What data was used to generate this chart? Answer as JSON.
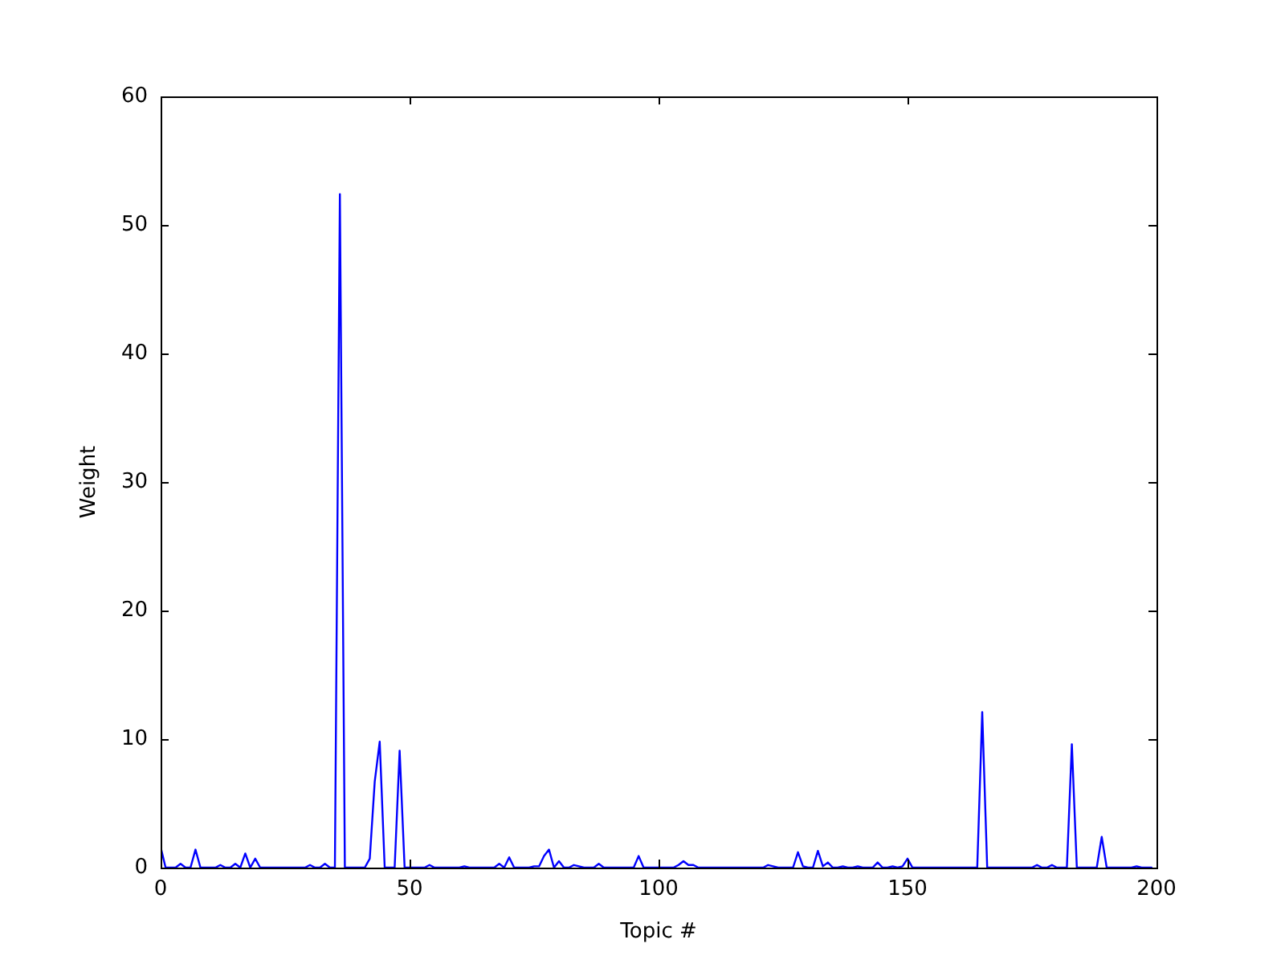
{
  "chart_data": {
    "type": "line",
    "xlabel": "Topic #",
    "ylabel": "Weight",
    "color": "#0000ff",
    "x": [
      0,
      1,
      2,
      3,
      4,
      5,
      6,
      7,
      8,
      9,
      10,
      11,
      12,
      13,
      14,
      15,
      16,
      17,
      18,
      19,
      20,
      21,
      22,
      23,
      24,
      25,
      26,
      27,
      28,
      29,
      30,
      31,
      32,
      33,
      34,
      35,
      36,
      37,
      38,
      39,
      40,
      41,
      42,
      43,
      44,
      45,
      46,
      47,
      48,
      49,
      50,
      51,
      52,
      53,
      54,
      55,
      56,
      57,
      58,
      59,
      60,
      61,
      62,
      63,
      64,
      65,
      66,
      67,
      68,
      69,
      70,
      71,
      72,
      73,
      74,
      75,
      76,
      77,
      78,
      79,
      80,
      81,
      82,
      83,
      84,
      85,
      86,
      87,
      88,
      89,
      90,
      91,
      92,
      93,
      94,
      95,
      96,
      97,
      98,
      99,
      100,
      101,
      102,
      103,
      104,
      105,
      106,
      107,
      108,
      109,
      110,
      111,
      112,
      113,
      114,
      115,
      116,
      117,
      118,
      119,
      120,
      121,
      122,
      123,
      124,
      125,
      126,
      127,
      128,
      129,
      130,
      131,
      132,
      133,
      134,
      135,
      136,
      137,
      138,
      139,
      140,
      141,
      142,
      143,
      144,
      145,
      146,
      147,
      148,
      149,
      150,
      151,
      152,
      153,
      154,
      155,
      156,
      157,
      158,
      159,
      160,
      161,
      162,
      163,
      164,
      165,
      166,
      167,
      168,
      169,
      170,
      171,
      172,
      173,
      174,
      175,
      176,
      177,
      178,
      179,
      180,
      181,
      182,
      183,
      184,
      185,
      186,
      187,
      188,
      189,
      190,
      191,
      192,
      193,
      194,
      195,
      196,
      197,
      198,
      199
    ],
    "values": [
      1.6,
      0,
      0,
      0,
      0.3,
      0,
      0,
      1.4,
      0,
      0,
      0,
      0,
      0.2,
      0,
      0,
      0.3,
      0,
      1.1,
      0,
      0.7,
      0,
      0,
      0,
      0,
      0,
      0,
      0,
      0,
      0,
      0,
      0.2,
      0,
      0,
      0.3,
      0,
      0,
      52.4,
      0,
      0,
      0,
      0,
      0,
      0.7,
      6.7,
      9.8,
      0,
      0,
      0,
      9.1,
      0,
      0,
      0,
      0,
      0,
      0.2,
      0,
      0,
      0,
      0,
      0,
      0,
      0.1,
      0,
      0,
      0,
      0,
      0,
      0,
      0.3,
      0,
      0.8,
      0,
      0,
      0,
      0,
      0.1,
      0.1,
      0.9,
      1.4,
      0,
      0.5,
      0,
      0,
      0.2,
      0.1,
      0,
      0,
      0,
      0.3,
      0,
      0,
      0,
      0,
      0,
      0,
      0,
      0.9,
      0,
      0,
      0,
      0,
      0,
      0,
      0,
      0.2,
      0.5,
      0.2,
      0.2,
      0,
      0,
      0,
      0,
      0,
      0,
      0,
      0,
      0,
      0,
      0,
      0,
      0,
      0,
      0.2,
      0.1,
      0,
      0,
      0,
      0,
      1.2,
      0.1,
      0,
      0,
      1.3,
      0.1,
      0.4,
      0,
      0,
      0.1,
      0,
      0,
      0.1,
      0,
      0,
      0,
      0.4,
      0,
      0,
      0.1,
      0,
      0.1,
      0.7,
      0,
      0,
      0,
      0,
      0,
      0,
      0,
      0,
      0,
      0,
      0,
      0,
      0,
      0,
      12.1,
      0,
      0,
      0,
      0,
      0,
      0,
      0,
      0,
      0,
      0,
      0.2,
      0,
      0,
      0.2,
      0,
      0,
      0,
      9.6,
      0,
      0,
      0,
      0,
      0,
      2.4,
      0,
      0,
      0,
      0,
      0,
      0,
      0.1,
      0,
      0,
      0
    ],
    "xlim": [
      0,
      200
    ],
    "ylim": [
      0,
      60
    ],
    "xticks": [
      0,
      50,
      100,
      150,
      200
    ],
    "yticks": [
      0,
      10,
      20,
      30,
      40,
      50,
      60
    ]
  }
}
